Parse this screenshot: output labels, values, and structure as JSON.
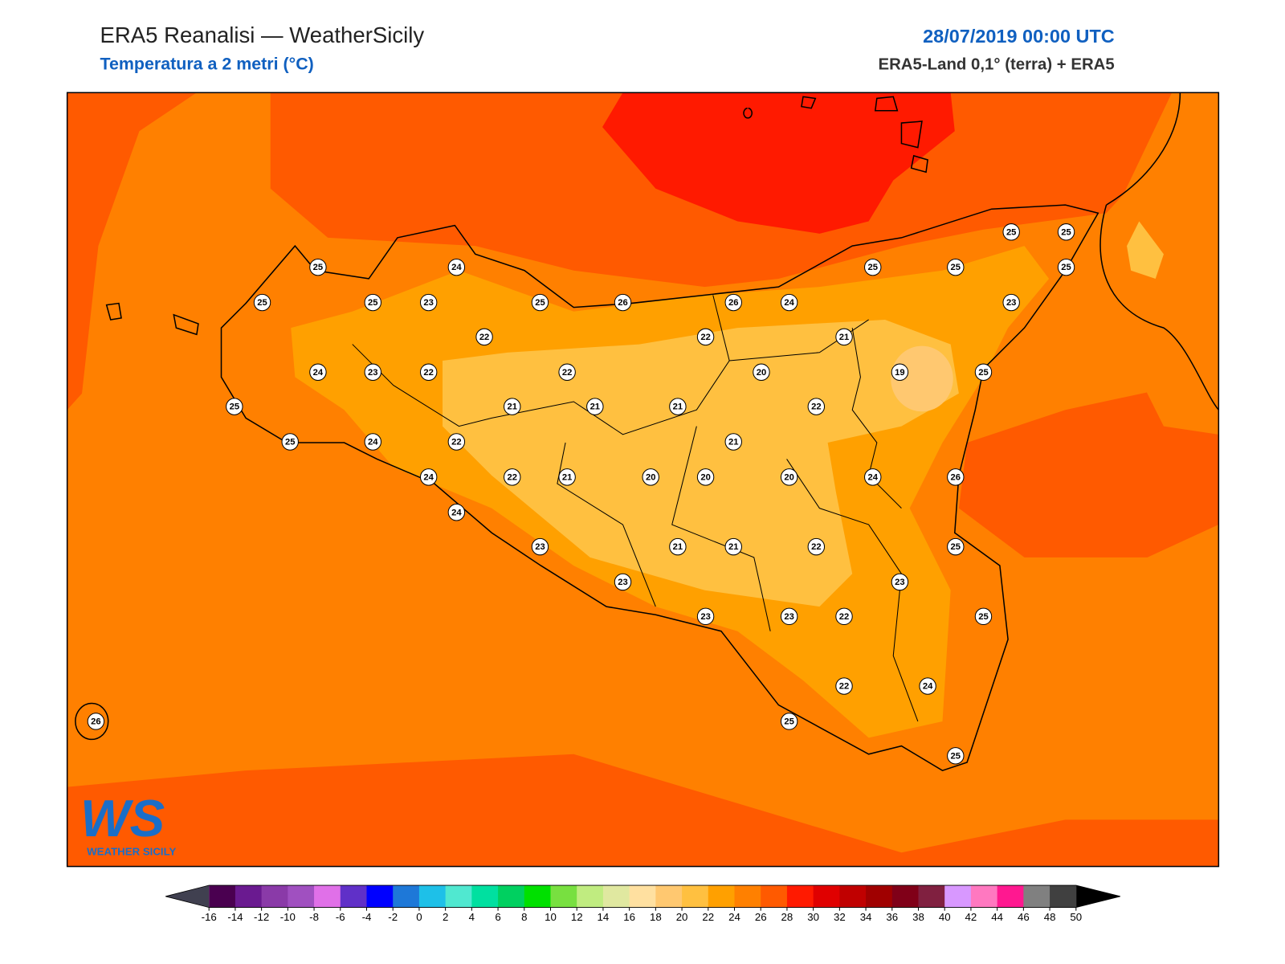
{
  "header": {
    "title": "ERA5 Reanalisi — WeatherSicily",
    "subtitle": "Temperatura a 2 metri (°C)",
    "datetime": "28/07/2019 00:00 UTC",
    "source": "ERA5-Land 0,1° (terra) + ERA5"
  },
  "stations": [
    25,
    24,
    25,
    25,
    23,
    25,
    26,
    26,
    24,
    25,
    25,
    25,
    25,
    25,
    23,
    22,
    22,
    21,
    24,
    23,
    22,
    22,
    20,
    19,
    25,
    25,
    21,
    21,
    21,
    22,
    25,
    24,
    22,
    21,
    24,
    22,
    21,
    20,
    20,
    20,
    24,
    26,
    24,
    23,
    21,
    21,
    22,
    25,
    23,
    23,
    23,
    23,
    22,
    25,
    22,
    24,
    26,
    25,
    25
  ],
  "colorbar": {
    "ticks": [
      -16,
      -14,
      -12,
      -10,
      -8,
      -6,
      -4,
      -2,
      0,
      2,
      4,
      6,
      8,
      10,
      12,
      14,
      16,
      18,
      20,
      22,
      24,
      26,
      28,
      30,
      32,
      34,
      36,
      38,
      40,
      42,
      44,
      46,
      48,
      50
    ],
    "colors": [
      "#4a0050",
      "#6a1a90",
      "#8a3aa8",
      "#a050c0",
      "#e070e8",
      "#6030c8",
      "#0000ff",
      "#1e78d8",
      "#1ec0e8",
      "#50e8d0",
      "#00e0a0",
      "#00d060",
      "#00e000",
      "#78e040",
      "#c0ec80",
      "#e0e8a0",
      "#ffe0a0",
      "#ffc870",
      "#ffc040",
      "#ffa000",
      "#ff8000",
      "#ff5a00",
      "#ff1a00",
      "#e00000",
      "#c00000",
      "#a00000",
      "#800018",
      "#802040",
      "#d898ff",
      "#ff78c0",
      "#ff1890",
      "#808080",
      "#404040"
    ],
    "under_color": "#404050",
    "over_color": "#000000"
  },
  "logo": {
    "mark": "WS",
    "text": "WEATHER SICILY"
  }
}
